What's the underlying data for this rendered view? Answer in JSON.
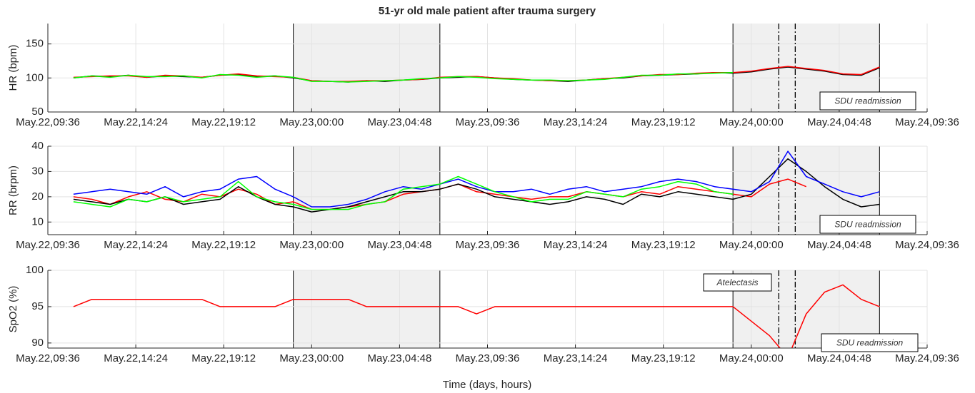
{
  "chart_data": [
    {
      "type": "line",
      "title": "51-yr old male patient after trauma surgery",
      "ylabel": "HR (bpm)",
      "x": [
        "May.22,11:00",
        "May.22,12:00",
        "May.22,13:00",
        "May.22,14:00",
        "May.22,15:00",
        "May.22,16:00",
        "May.22,17:00",
        "May.22,18:00",
        "May.22,19:00",
        "May.22,20:00",
        "May.22,21:00",
        "May.22,22:00",
        "May.22,23:00",
        "May.23,00:00",
        "May.23,01:00",
        "May.23,02:00",
        "May.23,03:00",
        "May.23,04:00",
        "May.23,05:00",
        "May.23,06:00",
        "May.23,07:00",
        "May.23,08:00",
        "May.23,09:00",
        "May.23,10:00",
        "May.23,11:00",
        "May.23,12:00",
        "May.23,13:00",
        "May.23,14:00",
        "May.23,15:00",
        "May.23,16:00",
        "May.23,17:00",
        "May.23,18:00",
        "May.23,19:00",
        "May.23,20:00",
        "May.23,21:00",
        "May.23,22:00",
        "May.23,23:00",
        "May.24,00:00",
        "May.24,01:00",
        "May.24,02:00",
        "May.24,03:00",
        "May.24,04:00",
        "May.24,05:00",
        "May.24,06:00",
        "May.24,07:00"
      ],
      "series": [
        {
          "color": "#000000",
          "values": [
            100,
            103,
            102,
            104,
            101,
            103,
            102,
            101,
            104,
            105,
            102,
            103,
            100,
            96,
            95,
            94,
            96,
            95,
            97,
            98,
            100,
            101,
            102,
            100,
            98,
            97,
            96,
            95,
            97,
            99,
            100,
            103,
            104,
            105,
            106,
            108,
            107,
            109,
            113,
            116,
            113,
            110,
            105,
            104,
            115
          ]
        },
        {
          "color": "#ff0000",
          "values": [
            101,
            102,
            103,
            103,
            101,
            104,
            103,
            101,
            104,
            106,
            103,
            102,
            101,
            96,
            95,
            95,
            96,
            96,
            97,
            98,
            101,
            102,
            102,
            100,
            99,
            97,
            96,
            96,
            97,
            99,
            101,
            103,
            105,
            105,
            107,
            108,
            108,
            110,
            114,
            117,
            114,
            111,
            106,
            105,
            116
          ]
        },
        {
          "color": "#00ff00",
          "values": [
            100,
            103,
            101,
            104,
            102,
            102,
            103,
            100,
            105,
            104,
            101,
            103,
            101,
            95,
            95,
            94,
            95,
            96,
            97,
            99,
            100,
            102,
            101,
            99,
            98,
            97,
            97,
            96,
            97,
            98,
            101,
            104,
            104,
            106,
            106,
            107,
            108,
            null,
            null,
            null,
            null,
            null,
            null,
            null,
            null
          ]
        }
      ],
      "xlim": [
        "May.22,09:36",
        "May.24,09:36"
      ],
      "xticks": [
        "May.22,09:36",
        "May.22,14:24",
        "May.22,19:12",
        "May.23,00:00",
        "May.23,04:48",
        "May.23,09:36",
        "May.23,14:24",
        "May.23,19:12",
        "May.24,00:00",
        "May.24,04:48",
        "May.24,09:36"
      ],
      "ylim": [
        50,
        180
      ],
      "yticks": [
        50,
        100,
        150
      ],
      "grid": true,
      "shaded": [
        [
          "May.22,23:00",
          "May.23,07:00"
        ],
        [
          "May.23,23:00",
          "May.24,07:00"
        ]
      ],
      "events": [
        "May.24,01:30",
        "May.24,02:24"
      ],
      "annotations": [
        "SDU readmission"
      ]
    },
    {
      "type": "line",
      "ylabel": "RR (brpm)",
      "x": [
        "May.22,11:00",
        "May.22,12:00",
        "May.22,13:00",
        "May.22,14:00",
        "May.22,15:00",
        "May.22,16:00",
        "May.22,17:00",
        "May.22,18:00",
        "May.22,19:00",
        "May.22,20:00",
        "May.22,21:00",
        "May.22,22:00",
        "May.22,23:00",
        "May.23,00:00",
        "May.23,01:00",
        "May.23,02:00",
        "May.23,03:00",
        "May.23,04:00",
        "May.23,05:00",
        "May.23,06:00",
        "May.23,07:00",
        "May.23,08:00",
        "May.23,09:00",
        "May.23,10:00",
        "May.23,11:00",
        "May.23,12:00",
        "May.23,13:00",
        "May.23,14:00",
        "May.23,15:00",
        "May.23,16:00",
        "May.23,17:00",
        "May.23,18:00",
        "May.23,19:00",
        "May.23,20:00",
        "May.23,21:00",
        "May.23,22:00",
        "May.23,23:00",
        "May.24,00:00",
        "May.24,01:00",
        "May.24,02:00",
        "May.24,03:00",
        "May.24,04:00",
        "May.24,05:00",
        "May.24,06:00",
        "May.24,07:00"
      ],
      "series": [
        {
          "color": "#ff0000",
          "values": [
            20,
            19,
            17,
            20,
            22,
            19,
            18,
            21,
            20,
            23,
            21,
            17,
            18,
            15,
            15,
            16,
            17,
            18,
            21,
            22,
            23,
            25,
            22,
            21,
            20,
            19,
            20,
            20,
            22,
            21,
            20,
            22,
            21,
            24,
            23,
            22,
            21,
            20,
            25,
            27,
            24,
            null,
            null,
            null,
            null
          ]
        },
        {
          "color": "#000000",
          "values": [
            19,
            18,
            17,
            19,
            18,
            20,
            17,
            18,
            19,
            24,
            20,
            17,
            16,
            14,
            15,
            16,
            18,
            20,
            22,
            22,
            23,
            25,
            23,
            20,
            19,
            18,
            17,
            18,
            20,
            19,
            17,
            21,
            20,
            22,
            21,
            20,
            19,
            21,
            28,
            35,
            30,
            24,
            19,
            16,
            17
          ]
        },
        {
          "color": "#0000ff",
          "values": [
            21,
            22,
            23,
            22,
            21,
            24,
            20,
            22,
            23,
            27,
            28,
            23,
            20,
            16,
            16,
            17,
            19,
            22,
            24,
            23,
            25,
            27,
            24,
            22,
            22,
            23,
            21,
            23,
            24,
            22,
            23,
            24,
            26,
            27,
            26,
            24,
            23,
            22,
            26,
            38,
            28,
            25,
            22,
            20,
            22
          ]
        },
        {
          "color": "#00ff00",
          "values": [
            18,
            17,
            16,
            19,
            18,
            20,
            18,
            19,
            20,
            26,
            20,
            18,
            17,
            15,
            15,
            15,
            17,
            18,
            23,
            24,
            25,
            28,
            25,
            22,
            20,
            18,
            19,
            19,
            22,
            21,
            20,
            23,
            24,
            26,
            25,
            22,
            21,
            null,
            null,
            null,
            null,
            null,
            null,
            null,
            null
          ]
        }
      ],
      "xlim": [
        "May.22,09:36",
        "May.24,09:36"
      ],
      "xticks": [
        "May.22,09:36",
        "May.22,14:24",
        "May.22,19:12",
        "May.23,00:00",
        "May.23,04:48",
        "May.23,09:36",
        "May.23,14:24",
        "May.23,19:12",
        "May.24,00:00",
        "May.24,04:48",
        "May.24,09:36"
      ],
      "ylim": [
        5,
        40
      ],
      "yticks": [
        10,
        20,
        30,
        40
      ],
      "grid": true,
      "shaded": [
        [
          "May.22,23:00",
          "May.23,07:00"
        ],
        [
          "May.23,23:00",
          "May.24,07:00"
        ]
      ],
      "events": [
        "May.24,01:30",
        "May.24,02:24"
      ],
      "annotations": [
        "SDU readmission"
      ]
    },
    {
      "type": "line",
      "ylabel": "SpO2 (%)",
      "xlabel": "Time (days, hours)",
      "x": [
        "May.22,11:00",
        "May.22,12:00",
        "May.22,13:00",
        "May.22,14:00",
        "May.22,15:00",
        "May.22,16:00",
        "May.22,17:00",
        "May.22,18:00",
        "May.22,19:00",
        "May.22,20:00",
        "May.22,21:00",
        "May.22,22:00",
        "May.22,23:00",
        "May.23,00:00",
        "May.23,01:00",
        "May.23,02:00",
        "May.23,03:00",
        "May.23,04:00",
        "May.23,05:00",
        "May.23,06:00",
        "May.23,07:00",
        "May.23,08:00",
        "May.23,09:00",
        "May.23,10:00",
        "May.23,11:00",
        "May.23,12:00",
        "May.23,13:00",
        "May.23,14:00",
        "May.23,15:00",
        "May.23,16:00",
        "May.23,17:00",
        "May.23,18:00",
        "May.23,19:00",
        "May.23,20:00",
        "May.23,21:00",
        "May.23,22:00",
        "May.23,23:00",
        "May.24,00:00",
        "May.24,01:00",
        "May.24,02:00",
        "May.24,03:00",
        "May.24,04:00",
        "May.24,05:00",
        "May.24,06:00",
        "May.24,07:00"
      ],
      "series": [
        {
          "color": "#ff0000",
          "values": [
            95,
            96,
            96,
            96,
            96,
            96,
            96,
            96,
            95,
            95,
            95,
            95,
            96,
            96,
            96,
            96,
            95,
            95,
            95,
            95,
            95,
            95,
            94,
            95,
            95,
            95,
            95,
            95,
            95,
            95,
            95,
            95,
            95,
            95,
            95,
            95,
            95,
            93,
            91,
            88,
            94,
            97,
            98,
            96,
            95
          ]
        }
      ],
      "xlim": [
        "May.22,09:36",
        "May.24,09:36"
      ],
      "xticks": [
        "May.22,09:36",
        "May.22,14:24",
        "May.22,19:12",
        "May.23,00:00",
        "May.23,04:48",
        "May.23,09:36",
        "May.23,14:24",
        "May.23,19:12",
        "May.24,00:00",
        "May.24,04:48",
        "May.24,09:36"
      ],
      "ylim": [
        89.3,
        100
      ],
      "yticks": [
        90,
        95,
        100
      ],
      "grid": true,
      "shaded": [
        [
          "May.22,23:00",
          "May.23,07:00"
        ],
        [
          "May.23,23:00",
          "May.24,07:00"
        ]
      ],
      "events": [
        "May.24,01:30",
        "May.24,02:24"
      ],
      "annotations": [
        "Atelectasis",
        "SDU readmission"
      ]
    }
  ]
}
